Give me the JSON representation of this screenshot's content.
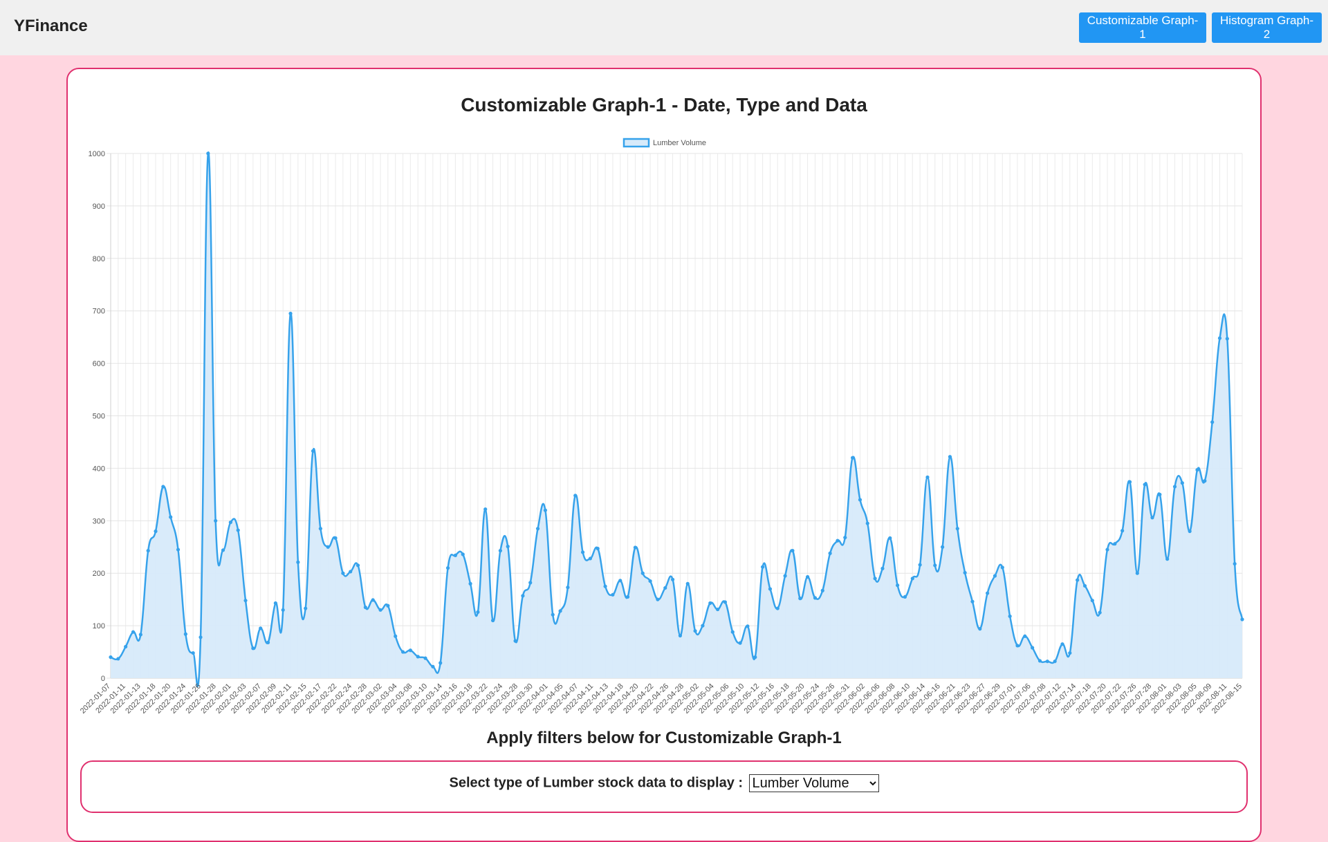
{
  "navbar": {
    "brand": "YFinance",
    "buttons": [
      "Customizable Graph-1",
      "Histogram Graph-2"
    ]
  },
  "graph": {
    "title": "Customizable Graph-1 - Date, Type and Data"
  },
  "filters": {
    "title": "Apply filters below for Customizable Graph-1",
    "label": "Select type of Lumber stock data to display :",
    "selected": "Lumber Volume"
  },
  "colors": {
    "accent": "#2196f3",
    "line": "#36a2eb",
    "fill": "#d7eafa",
    "border_pink": "#e0306e",
    "page_bg": "#ffd6e0"
  },
  "chart_data": {
    "type": "line",
    "title": "",
    "xlabel": "",
    "ylabel": "",
    "ylim": [
      0,
      1000
    ],
    "yticks": [
      0,
      100,
      200,
      300,
      400,
      500,
      600,
      700,
      800,
      900,
      1000
    ],
    "grid": true,
    "legend_position": "top-center",
    "fill_area": true,
    "x_tick_labels": [
      "2022-01-07",
      "2022-01-11",
      "2022-01-13",
      "2022-01-18",
      "2022-01-20",
      "2022-01-24",
      "2022-01-26",
      "2022-01-28",
      "2022-02-01",
      "2022-02-03",
      "2022-02-07",
      "2022-02-09",
      "2022-02-11",
      "2022-02-15",
      "2022-02-17",
      "2022-02-22",
      "2022-02-24",
      "2022-02-28",
      "2022-03-02",
      "2022-03-04",
      "2022-03-08",
      "2022-03-10",
      "2022-03-14",
      "2022-03-16",
      "2022-03-18",
      "2022-03-22",
      "2022-03-24",
      "2022-03-28",
      "2022-03-30",
      "2022-04-01",
      "2022-04-05",
      "2022-04-07",
      "2022-04-11",
      "2022-04-13",
      "2022-04-18",
      "2022-04-20",
      "2022-04-22",
      "2022-04-26",
      "2022-04-28",
      "2022-05-02",
      "2022-05-04",
      "2022-05-06",
      "2022-05-10",
      "2022-05-12",
      "2022-05-16",
      "2022-05-18",
      "2022-05-20",
      "2022-05-24",
      "2022-05-26",
      "2022-05-31",
      "2022-06-02",
      "2022-06-06",
      "2022-06-08",
      "2022-06-10",
      "2022-06-14",
      "2022-06-16",
      "2022-06-21",
      "2022-06-23",
      "2022-06-27",
      "2022-06-29",
      "2022-07-01",
      "2022-07-06",
      "2022-07-08",
      "2022-07-12",
      "2022-07-14",
      "2022-07-18",
      "2022-07-20",
      "2022-07-22",
      "2022-07-26",
      "2022-07-28",
      "2022-08-01",
      "2022-08-03",
      "2022-08-05",
      "2022-08-09",
      "2022-08-11",
      "2022-08-15"
    ],
    "series": [
      {
        "name": "Lumber Volume",
        "values": [
          40,
          37,
          60,
          88,
          83,
          243,
          280,
          365,
          307,
          245,
          84,
          48,
          78,
          1000,
          300,
          244,
          297,
          282,
          148,
          57,
          95,
          68,
          143,
          130,
          695,
          221,
          133,
          433,
          285,
          250,
          267,
          200,
          203,
          215,
          135,
          149,
          130,
          138,
          80,
          50,
          53,
          41,
          38,
          22,
          29,
          210,
          234,
          236,
          180,
          126,
          322,
          110,
          243,
          251,
          71,
          157,
          182,
          285,
          320,
          121,
          128,
          173,
          348,
          240,
          228,
          247,
          175,
          159,
          186,
          155,
          249,
          200,
          185,
          150,
          172,
          188,
          81,
          180,
          90,
          100,
          143,
          131,
          145,
          88,
          67,
          99,
          40,
          212,
          170,
          133,
          195,
          243,
          152,
          193,
          153,
          167,
          238,
          262,
          268,
          420,
          340,
          295,
          190,
          209,
          267,
          177,
          155,
          190,
          216,
          383,
          215,
          250,
          422,
          285,
          201,
          146,
          94,
          162,
          195,
          211,
          118,
          62,
          80,
          58,
          33,
          32,
          32,
          65,
          48,
          187,
          176,
          148,
          125,
          245,
          256,
          281,
          374,
          200,
          369,
          306,
          350,
          227,
          365,
          372,
          280,
          397,
          376,
          488,
          648,
          647,
          218,
          112
        ]
      }
    ]
  }
}
